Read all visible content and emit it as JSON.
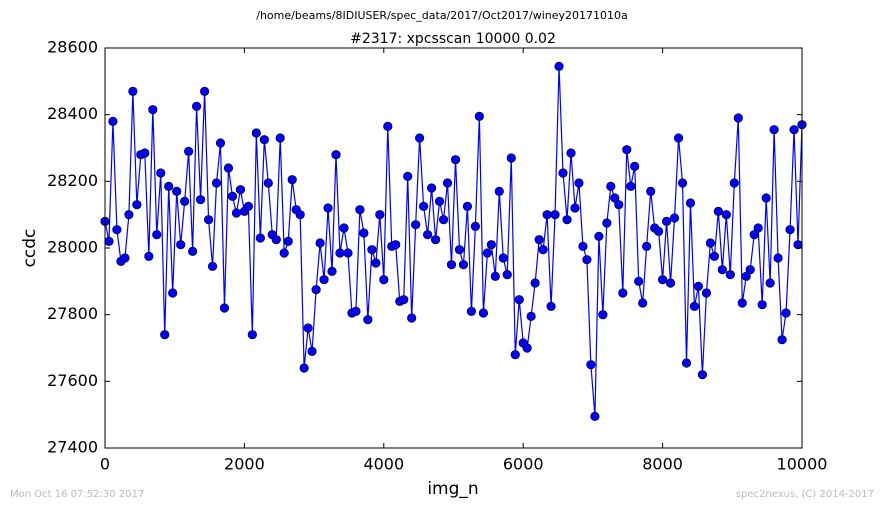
{
  "chart_data": {
    "type": "line",
    "suptitle": "/home/beams/8IDIUSER/spec_data/2017/Oct2017/winey20171010a",
    "title": "#2317: xpcsscan 10000 0.02",
    "x_label": "img_n",
    "y_label": "ccdc",
    "footer_left": "Mon Oct 16 07:52:30 2017",
    "footer_right": "spec2nexus, (C) 2014-2017",
    "color": "#0000ff",
    "x": [
      0,
      57,
      114,
      171,
      229,
      286,
      343,
      400,
      457,
      514,
      571,
      629,
      686,
      743,
      800,
      857,
      914,
      971,
      1029,
      1086,
      1143,
      1200,
      1257,
      1314,
      1371,
      1429,
      1486,
      1543,
      1600,
      1657,
      1714,
      1771,
      1829,
      1886,
      1943,
      2000,
      2057,
      2114,
      2171,
      2229,
      2286,
      2343,
      2400,
      2457,
      2514,
      2571,
      2629,
      2686,
      2743,
      2800,
      2857,
      2914,
      2971,
      3029,
      3086,
      3143,
      3200,
      3257,
      3314,
      3371,
      3429,
      3486,
      3543,
      3600,
      3657,
      3714,
      3771,
      3829,
      3886,
      3943,
      4000,
      4057,
      4114,
      4171,
      4229,
      4286,
      4343,
      4400,
      4457,
      4514,
      4571,
      4629,
      4686,
      4743,
      4800,
      4857,
      4914,
      4971,
      5029,
      5086,
      5143,
      5200,
      5257,
      5314,
      5371,
      5429,
      5486,
      5543,
      5600,
      5657,
      5714,
      5771,
      5829,
      5886,
      5943,
      6000,
      6057,
      6114,
      6171,
      6229,
      6286,
      6343,
      6400,
      6457,
      6514,
      6571,
      6629,
      6686,
      6743,
      6800,
      6857,
      6914,
      6971,
      7029,
      7086,
      7143,
      7200,
      7257,
      7314,
      7371,
      7429,
      7486,
      7543,
      7600,
      7657,
      7714,
      7771,
      7829,
      7886,
      7943,
      8000,
      8057,
      8114,
      8171,
      8229,
      8286,
      8343,
      8400,
      8457,
      8514,
      8571,
      8629,
      8686,
      8743,
      8800,
      8857,
      8914,
      8971,
      9029,
      9086,
      9143,
      9200,
      9257,
      9314,
      9371,
      9429,
      9486,
      9543,
      9600,
      9657,
      9714,
      9771,
      9829,
      9886,
      9943,
      10000
    ],
    "values": [
      28080,
      28020,
      28380,
      28055,
      27960,
      27970,
      28100,
      28470,
      28130,
      28280,
      28285,
      27975,
      28415,
      28040,
      28225,
      27740,
      28185,
      27865,
      28170,
      28010,
      28140,
      28290,
      27990,
      28425,
      28145,
      28470,
      28085,
      27945,
      28195,
      28315,
      27820,
      28240,
      28155,
      28105,
      28175,
      28110,
      28125,
      27740,
      28345,
      28030,
      28325,
      28195,
      28040,
      28025,
      28330,
      27985,
      28020,
      28205,
      28115,
      28100,
      27640,
      27760,
      27690,
      27875,
      28015,
      27905,
      28120,
      27930,
      28280,
      27985,
      28060,
      27985,
      27805,
      27810,
      28115,
      28045,
      27785,
      27995,
      27955,
      28100,
      27905,
      28365,
      28005,
      28010,
      27840,
      27845,
      28215,
      27790,
      28070,
      28330,
      28125,
      28040,
      28180,
      28025,
      28140,
      28085,
      28195,
      27950,
      28265,
      27995,
      27950,
      28125,
      27810,
      28065,
      28395,
      27805,
      27985,
      28010,
      27915,
      28170,
      27970,
      27920,
      28270,
      27680,
      27845,
      27715,
      27700,
      27795,
      27895,
      28025,
      27995,
      28100,
      27825,
      28100,
      28545,
      28225,
      28085,
      28285,
      28120,
      28195,
      28005,
      27965,
      27650,
      27495,
      28035,
      27800,
      28075,
      28185,
      28150,
      28130,
      27865,
      28295,
      28185,
      28245,
      27900,
      27835,
      28005,
      28170,
      28060,
      28050,
      27905,
      28080,
      27895,
      28090,
      28330,
      28195,
      27655,
      28135,
      27825,
      27885,
      27620,
      27865,
      28015,
      27975,
      28110,
      27935,
      28100,
      27920,
      28195,
      28390,
      27835,
      27915,
      27935,
      28040,
      28060,
      27830,
      28150,
      27895,
      28355,
      27970,
      27725,
      27805,
      28055,
      28355,
      28010,
      28370
    ],
    "xlim": [
      0,
      10000
    ],
    "xticks": [
      0,
      2000,
      4000,
      6000,
      8000,
      10000
    ],
    "ylim": [
      27400,
      28600
    ],
    "yticks": [
      27400,
      27600,
      27800,
      28000,
      28200,
      28400,
      28600
    ]
  }
}
